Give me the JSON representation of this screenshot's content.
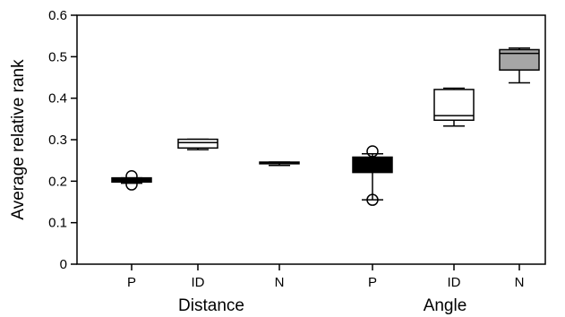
{
  "chart_data": {
    "type": "box",
    "ylabel": "Average relative rank",
    "ylim": [
      0,
      0.6
    ],
    "yticks": [
      0,
      0.1,
      0.2,
      0.3,
      0.4,
      0.5,
      0.6
    ],
    "ytick_labels": [
      "0",
      "0.1",
      "0.2",
      "0.3",
      "0.4",
      "0.5",
      "0.6"
    ],
    "groups": [
      {
        "label": "Distance",
        "boxes": [
          {
            "category": "P",
            "whisker_low": 0.195,
            "q1": 0.198,
            "median": 0.203,
            "q3": 0.208,
            "whisker_high": 0.208,
            "fill": "#000000",
            "outliers": [
              0.192,
              0.212
            ]
          },
          {
            "category": "ID",
            "whisker_low": 0.276,
            "q1": 0.28,
            "median": 0.293,
            "q3": 0.301,
            "whisker_high": 0.301,
            "fill": "#ffffff",
            "outliers": []
          },
          {
            "category": "N",
            "whisker_low": 0.238,
            "q1": 0.242,
            "median": 0.244,
            "q3": 0.246,
            "whisker_high": 0.246,
            "fill": "#000000",
            "outliers": []
          }
        ]
      },
      {
        "label": "Angle",
        "boxes": [
          {
            "category": "P",
            "whisker_low": 0.155,
            "q1": 0.221,
            "median": 0.232,
            "q3": 0.258,
            "whisker_high": 0.266,
            "fill": "#000000",
            "outliers": [
              0.155,
              0.272
            ]
          },
          {
            "category": "ID",
            "whisker_low": 0.333,
            "q1": 0.347,
            "median": 0.358,
            "q3": 0.421,
            "whisker_high": 0.424,
            "fill": "#ffffff",
            "outliers": []
          },
          {
            "category": "N",
            "whisker_low": 0.437,
            "q1": 0.468,
            "median": 0.508,
            "q3": 0.517,
            "whisker_high": 0.521,
            "fill": "#a6a6a6",
            "outliers": []
          }
        ]
      }
    ],
    "grid": false,
    "legend": "none"
  }
}
